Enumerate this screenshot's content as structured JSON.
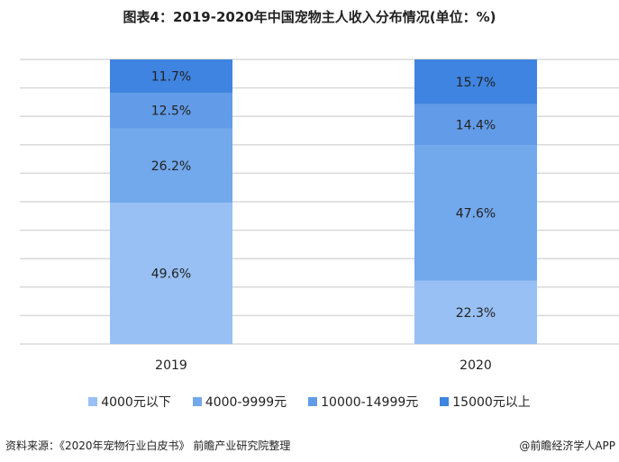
{
  "chart_data": {
    "type": "bar",
    "stacked": true,
    "title": "图表4：2019-2020年中国宠物主人收入分布情况(单位：%)",
    "categories": [
      "2019",
      "2020"
    ],
    "series": [
      {
        "name": "4000元以下",
        "values": [
          49.6,
          22.3
        ],
        "color": "#98c0f4"
      },
      {
        "name": "4000-9999元",
        "values": [
          26.2,
          47.6
        ],
        "color": "#72a8ec"
      },
      {
        "name": "10000-14999元",
        "values": [
          12.5,
          14.4
        ],
        "color": "#629ce8"
      },
      {
        "name": "15000元以上",
        "values": [
          11.7,
          15.7
        ],
        "color": "#3f84e0"
      }
    ],
    "ylim": [
      0,
      100
    ],
    "grid": true,
    "legend": "bottom"
  },
  "footer": {
    "source": "资料来源：《2020年宠物行业白皮书》 前瞻产业研究院整理",
    "credit": "@前瞻经济学人APP"
  }
}
